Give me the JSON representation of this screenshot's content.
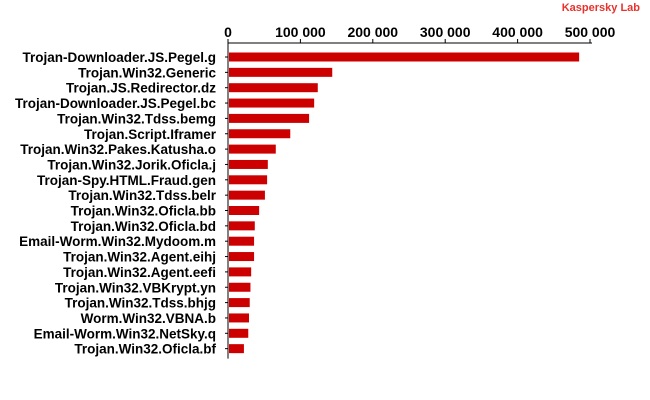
{
  "brand": {
    "text": "Kaspersky Lab",
    "color": "#e8322c"
  },
  "chart_data": {
    "type": "bar",
    "orientation": "horizontal",
    "title": "",
    "xlabel": "",
    "ylabel": "",
    "xlim": [
      0,
      500000
    ],
    "x_ticks": [
      0,
      100000,
      200000,
      300000,
      400000,
      500000
    ],
    "x_tick_labels": [
      "0",
      "100 000",
      "200 000",
      "300 000",
      "400 000",
      "500 000"
    ],
    "axis_position": "top",
    "grid": false,
    "legend": "none",
    "bar_color": "#cc0000",
    "categories": [
      "Trojan-Downloader.JS.Pegel.g",
      "Trojan.Win32.Generic",
      "Trojan.JS.Redirector.dz",
      "Trojan-Downloader.JS.Pegel.bc",
      "Trojan.Win32.Tdss.bemg",
      "Trojan.Script.Iframer",
      "Trojan.Win32.Pakes.Katusha.o",
      "Trojan.Win32.Jorik.Oficla.j",
      "Trojan-Spy.HTML.Fraud.gen",
      "Trojan.Win32.Tdss.belr",
      "Trojan.Win32.Oficla.bb",
      "Trojan.Win32.Oficla.bd",
      "Email-Worm.Win32.Mydoom.m",
      "Trojan.Win32.Agent.eihj",
      "Trojan.Win32.Agent.eefi",
      "Trojan.Win32.VBKrypt.yn",
      "Trojan.Win32.Tdss.bhjg",
      "Worm.Win32.VBNA.b",
      "Email-Worm.Win32.NetSky.q",
      "Trojan.Win32.Oficla.bf"
    ],
    "values": [
      485000,
      144000,
      124000,
      119000,
      112000,
      86000,
      66000,
      55000,
      54000,
      51000,
      43000,
      37000,
      36000,
      36000,
      32000,
      31000,
      30000,
      29000,
      28000,
      22000
    ]
  }
}
